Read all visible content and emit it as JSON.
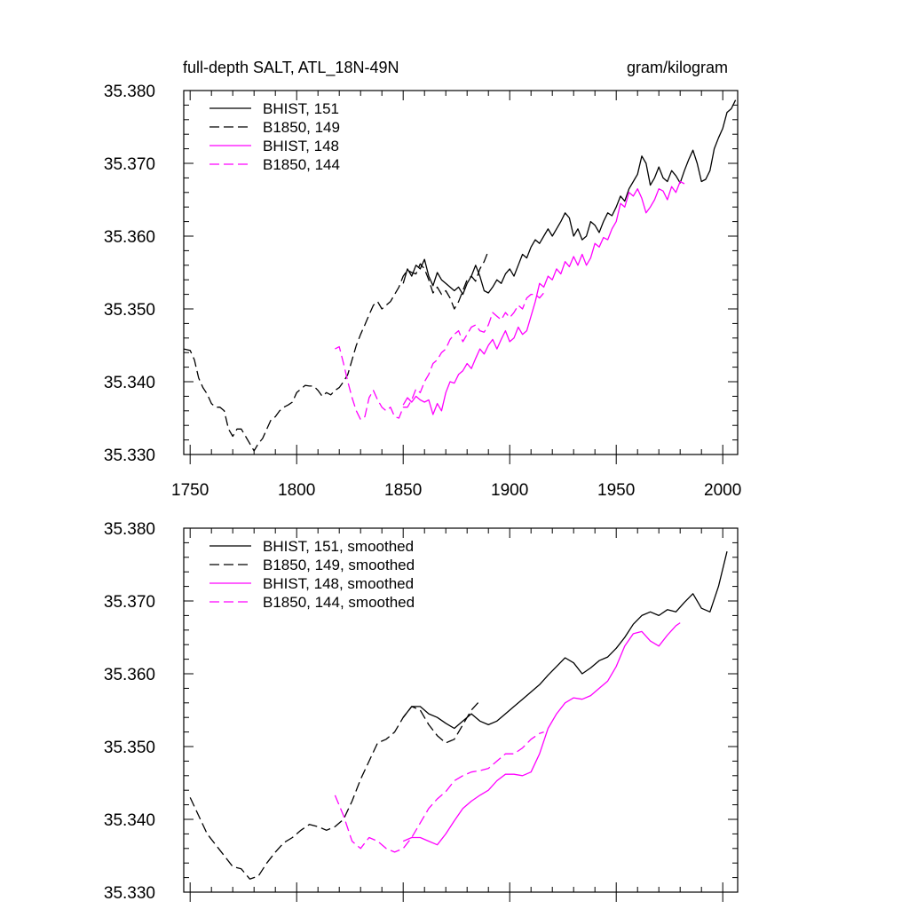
{
  "header": {
    "title": "full-depth SALT, ATL_18N-49N",
    "units": "gram/kilogram"
  },
  "colors": {
    "bhist_151": "#000000",
    "b1850_149": "#000000",
    "bhist_148": "#ff00ff",
    "b1850_144": "#ff00ff"
  },
  "chart_data": [
    {
      "type": "line",
      "title": "full-depth SALT, ATL_18N-49N",
      "right_title": "gram/kilogram",
      "xlim": [
        1747,
        2007
      ],
      "ylim": [
        35.33,
        35.38
      ],
      "x_ticks": [
        1750,
        1800,
        1850,
        1900,
        1950,
        2000
      ],
      "x_tick_labels": [
        "1750",
        "1800",
        "1850",
        "1900",
        "1950",
        "2000"
      ],
      "y_ticks": [
        35.33,
        35.34,
        35.35,
        35.36,
        35.37,
        35.38
      ],
      "y_tick_labels": [
        "35.330",
        "35.340",
        "35.350",
        "35.360",
        "35.370",
        "35.380"
      ],
      "grid": false,
      "legend_position": "top-left",
      "series": [
        {
          "name": "BHIST, 151",
          "color": "#000000",
          "dash": "solid",
          "x": [
            1850,
            1852,
            1854,
            1856,
            1858,
            1860,
            1862,
            1864,
            1866,
            1868,
            1870,
            1872,
            1874,
            1876,
            1878,
            1880,
            1882,
            1884,
            1886,
            1888,
            1890,
            1892,
            1894,
            1896,
            1898,
            1900,
            1902,
            1904,
            1906,
            1908,
            1910,
            1912,
            1914,
            1916,
            1918,
            1920,
            1922,
            1924,
            1926,
            1928,
            1930,
            1932,
            1934,
            1936,
            1938,
            1940,
            1942,
            1944,
            1946,
            1948,
            1950,
            1952,
            1954,
            1956,
            1958,
            1960,
            1962,
            1964,
            1966,
            1968,
            1970,
            1972,
            1974,
            1976,
            1978,
            1980,
            1982,
            1984,
            1986,
            1988,
            1990,
            1992,
            1994,
            1996,
            1998,
            2000,
            2002,
            2004,
            2006
          ],
          "y": [
            35.3535,
            35.3555,
            35.3545,
            35.356,
            35.3555,
            35.3568,
            35.3545,
            35.3532,
            35.355,
            35.354,
            35.3535,
            35.353,
            35.3525,
            35.353,
            35.352,
            35.3535,
            35.3545,
            35.356,
            35.3545,
            35.3525,
            35.3522,
            35.353,
            35.354,
            35.3535,
            35.3548,
            35.3555,
            35.3545,
            35.356,
            35.3575,
            35.357,
            35.3585,
            35.3595,
            35.359,
            35.36,
            35.361,
            35.36,
            35.361,
            35.362,
            35.3632,
            35.3625,
            35.36,
            35.361,
            35.3595,
            35.36,
            35.362,
            35.3615,
            35.3605,
            35.362,
            35.3632,
            35.3628,
            35.364,
            35.3655,
            35.3648,
            35.3665,
            35.3675,
            35.3685,
            35.371,
            35.37,
            35.367,
            35.368,
            35.3695,
            35.368,
            35.3675,
            35.369,
            35.3683,
            35.3673,
            35.369,
            35.3705,
            35.3718,
            35.37,
            35.3675,
            35.3678,
            35.369,
            35.372,
            35.3735,
            35.3748,
            35.377,
            35.3775,
            35.3787
          ]
        },
        {
          "name": "B1850, 149",
          "color": "#000000",
          "dash": "dashed",
          "x": [
            1747,
            1750,
            1752,
            1754,
            1756,
            1758,
            1760,
            1762,
            1764,
            1766,
            1768,
            1770,
            1772,
            1774,
            1776,
            1778,
            1780,
            1782,
            1784,
            1786,
            1788,
            1790,
            1792,
            1794,
            1796,
            1798,
            1800,
            1802,
            1804,
            1806,
            1808,
            1810,
            1812,
            1814,
            1816,
            1818,
            1820,
            1822,
            1824,
            1826,
            1828,
            1830,
            1832,
            1834,
            1836,
            1838,
            1840,
            1842,
            1844,
            1846,
            1848,
            1850,
            1852,
            1854,
            1856,
            1858,
            1860,
            1862,
            1864,
            1866,
            1868,
            1870,
            1872,
            1874,
            1876,
            1878,
            1880,
            1882,
            1884,
            1886,
            1888,
            1890
          ],
          "y": [
            35.3445,
            35.3443,
            35.343,
            35.3405,
            35.3392,
            35.3383,
            35.337,
            35.3365,
            35.3365,
            35.336,
            35.3335,
            35.3325,
            35.3335,
            35.3335,
            35.3325,
            35.3315,
            35.3305,
            35.3315,
            35.3322,
            35.3335,
            35.3348,
            35.3352,
            35.336,
            35.3365,
            35.3368,
            35.3372,
            35.3385,
            35.339,
            35.3395,
            35.3394,
            35.3394,
            35.3388,
            35.338,
            35.3385,
            35.3382,
            35.3388,
            35.3392,
            35.34,
            35.341,
            35.343,
            35.345,
            35.3465,
            35.3478,
            35.3492,
            35.3505,
            35.351,
            35.35,
            35.3505,
            35.351,
            35.352,
            35.353,
            35.3545,
            35.3553,
            35.355,
            35.3548,
            35.3562,
            35.3555,
            35.354,
            35.3522,
            35.353,
            35.352,
            35.3525,
            35.3515,
            35.35,
            35.351,
            35.3525,
            35.354,
            35.3545,
            35.3538,
            35.3555,
            35.3565,
            35.358
          ]
        },
        {
          "name": "BHIST, 148",
          "color": "#ff00ff",
          "dash": "solid",
          "x": [
            1850,
            1852,
            1854,
            1856,
            1858,
            1860,
            1862,
            1864,
            1866,
            1868,
            1870,
            1872,
            1874,
            1876,
            1878,
            1880,
            1882,
            1884,
            1886,
            1888,
            1890,
            1892,
            1894,
            1896,
            1898,
            1900,
            1902,
            1904,
            1906,
            1908,
            1910,
            1912,
            1914,
            1916,
            1918,
            1920,
            1922,
            1924,
            1926,
            1928,
            1930,
            1932,
            1934,
            1936,
            1938,
            1940,
            1942,
            1944,
            1946,
            1948,
            1950,
            1952,
            1954,
            1956,
            1958,
            1960,
            1962,
            1964,
            1966,
            1968,
            1970,
            1972,
            1974,
            1976,
            1978,
            1980,
            1982
          ],
          "y": [
            35.3368,
            35.3378,
            35.3372,
            35.338,
            35.3375,
            35.3372,
            35.3375,
            35.3355,
            35.337,
            35.336,
            35.3385,
            35.34,
            35.3398,
            35.341,
            35.3415,
            35.3425,
            35.3418,
            35.3432,
            35.3445,
            35.3438,
            35.345,
            35.3458,
            35.3445,
            35.3458,
            35.347,
            35.3455,
            35.346,
            35.3475,
            35.3465,
            35.347,
            35.349,
            35.351,
            35.3535,
            35.353,
            35.3545,
            35.354,
            35.3555,
            35.3548,
            35.3565,
            35.3558,
            35.3572,
            35.356,
            35.3575,
            35.356,
            35.357,
            35.359,
            35.3585,
            35.3598,
            35.3595,
            35.361,
            35.362,
            35.3645,
            35.364,
            35.366,
            35.3655,
            35.3665,
            35.3652,
            35.3632,
            35.364,
            35.365,
            35.3665,
            35.3662,
            35.365,
            35.3668,
            35.366,
            35.3675,
            35.3672
          ]
        },
        {
          "name": "B1850, 144",
          "color": "#ff00ff",
          "dash": "dashed",
          "x": [
            1818,
            1820,
            1822,
            1824,
            1826,
            1828,
            1830,
            1832,
            1834,
            1836,
            1838,
            1840,
            1842,
            1844,
            1846,
            1848,
            1850,
            1852,
            1854,
            1856,
            1858,
            1860,
            1862,
            1864,
            1866,
            1868,
            1870,
            1872,
            1874,
            1876,
            1878,
            1880,
            1882,
            1884,
            1886,
            1888,
            1890,
            1892,
            1894,
            1896,
            1898,
            1900,
            1902,
            1904,
            1906,
            1908,
            1910,
            1912,
            1914,
            1916
          ],
          "y": [
            35.3445,
            35.3448,
            35.3425,
            35.34,
            35.3378,
            35.336,
            35.3348,
            35.3352,
            35.3378,
            35.3388,
            35.3375,
            35.3365,
            35.336,
            35.3365,
            35.3352,
            35.335,
            35.3365,
            35.3365,
            35.3375,
            35.339,
            35.3385,
            35.34,
            35.341,
            35.3425,
            35.343,
            35.344,
            35.3445,
            35.3458,
            35.3465,
            35.347,
            35.3455,
            35.3465,
            35.3475,
            35.3478,
            35.347,
            35.3468,
            35.3478,
            35.3495,
            35.349,
            35.3485,
            35.3495,
            35.3488,
            35.3495,
            35.3505,
            35.35,
            35.3515,
            35.352,
            35.352,
            35.3515,
            35.3522
          ]
        }
      ]
    },
    {
      "type": "line",
      "xlim": [
        1747,
        2007
      ],
      "ylim": [
        35.33,
        35.38
      ],
      "x_ticks": [
        1750,
        1800,
        1850,
        1900,
        1950,
        2000
      ],
      "y_ticks": [
        35.33,
        35.34,
        35.35,
        35.36,
        35.37,
        35.38
      ],
      "y_tick_labels": [
        "35.330",
        "35.340",
        "35.350",
        "35.360",
        "35.370",
        "35.380"
      ],
      "grid": false,
      "legend_position": "top-left",
      "series": [
        {
          "name": "BHIST, 151, smoothed",
          "color": "#000000",
          "dash": "solid",
          "x": [
            1850,
            1854,
            1858,
            1862,
            1866,
            1870,
            1874,
            1878,
            1882,
            1886,
            1890,
            1894,
            1898,
            1902,
            1906,
            1910,
            1914,
            1918,
            1922,
            1926,
            1930,
            1934,
            1938,
            1942,
            1946,
            1950,
            1954,
            1958,
            1962,
            1966,
            1970,
            1974,
            1978,
            1982,
            1986,
            1990,
            1994,
            1998,
            2002
          ],
          "y": [
            35.354,
            35.3555,
            35.3555,
            35.3545,
            35.354,
            35.3532,
            35.3525,
            35.3535,
            35.3545,
            35.3535,
            35.353,
            35.3535,
            35.3545,
            35.3555,
            35.3565,
            35.3575,
            35.3585,
            35.3598,
            35.361,
            35.3622,
            35.3615,
            35.36,
            35.3608,
            35.3618,
            35.3623,
            35.3635,
            35.365,
            35.3668,
            35.368,
            35.3685,
            35.368,
            35.3688,
            35.3685,
            35.3698,
            35.371,
            35.369,
            35.3685,
            35.372,
            35.3768
          ]
        },
        {
          "name": "B1850, 149, smoothed",
          "color": "#000000",
          "dash": "dashed",
          "x": [
            1750,
            1754,
            1758,
            1762,
            1766,
            1770,
            1774,
            1778,
            1782,
            1786,
            1790,
            1794,
            1798,
            1802,
            1806,
            1810,
            1814,
            1818,
            1822,
            1826,
            1830,
            1834,
            1838,
            1842,
            1846,
            1850,
            1854,
            1858,
            1862,
            1866,
            1870,
            1874,
            1878,
            1882,
            1886
          ],
          "y": [
            35.343,
            35.3405,
            35.338,
            35.3365,
            35.335,
            35.3335,
            35.3332,
            35.3318,
            35.3322,
            35.334,
            35.3355,
            35.3368,
            35.3375,
            35.3385,
            35.3393,
            35.339,
            35.3385,
            35.339,
            35.34,
            35.3425,
            35.3455,
            35.348,
            35.3505,
            35.351,
            35.352,
            35.354,
            35.3555,
            35.355,
            35.353,
            35.3515,
            35.3505,
            35.351,
            35.353,
            35.355,
            35.3563
          ]
        },
        {
          "name": "BHIST, 148, smoothed",
          "color": "#ff00ff",
          "dash": "solid",
          "x": [
            1850,
            1854,
            1858,
            1862,
            1866,
            1870,
            1874,
            1878,
            1882,
            1886,
            1890,
            1894,
            1898,
            1902,
            1906,
            1910,
            1914,
            1918,
            1922,
            1926,
            1930,
            1934,
            1938,
            1942,
            1946,
            1950,
            1954,
            1958,
            1962,
            1966,
            1970,
            1974,
            1978,
            1980
          ],
          "y": [
            35.337,
            35.3375,
            35.3375,
            35.337,
            35.3365,
            35.338,
            35.3398,
            35.3415,
            35.3425,
            35.3433,
            35.344,
            35.3453,
            35.3462,
            35.3462,
            35.346,
            35.3465,
            35.349,
            35.3525,
            35.3545,
            35.356,
            35.3567,
            35.3565,
            35.357,
            35.358,
            35.359,
            35.361,
            35.3638,
            35.3655,
            35.3658,
            35.3645,
            35.3638,
            35.3653,
            35.3666,
            35.367
          ]
        },
        {
          "name": "B1850, 144, smoothed",
          "color": "#ff00ff",
          "dash": "dashed",
          "x": [
            1818,
            1822,
            1826,
            1830,
            1834,
            1838,
            1842,
            1846,
            1850,
            1854,
            1858,
            1862,
            1866,
            1870,
            1874,
            1878,
            1882,
            1886,
            1890,
            1894,
            1898,
            1902,
            1906,
            1910,
            1914,
            1916
          ],
          "y": [
            35.3433,
            35.3405,
            35.337,
            35.336,
            35.3375,
            35.337,
            35.336,
            35.3355,
            35.336,
            35.3375,
            35.3395,
            35.3415,
            35.3428,
            35.3438,
            35.3453,
            35.346,
            35.3465,
            35.3467,
            35.347,
            35.348,
            35.349,
            35.349,
            35.3498,
            35.351,
            35.3518,
            35.352
          ]
        }
      ]
    }
  ]
}
